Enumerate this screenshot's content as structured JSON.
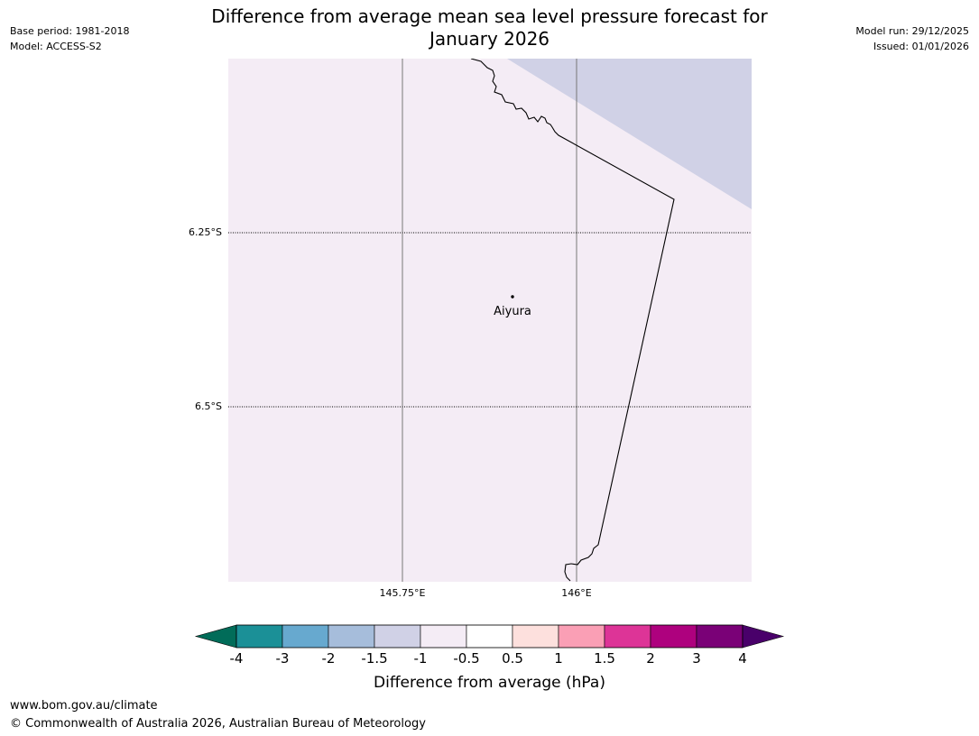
{
  "header": {
    "title_line1": "Difference from average mean sea level pressure forecast for",
    "title_line2": "January 2026",
    "base_period": "Base period: 1981-2018",
    "model": "Model: ACCESS-S2",
    "model_run": "Model run: 29/12/2025",
    "issued": "Issued: 01/01/2026"
  },
  "map": {
    "lat_labels": [
      "6.25°S",
      "6.5°S"
    ],
    "lon_labels": [
      "145.75°E",
      "146°E"
    ],
    "place_name": "Aiyura",
    "field_colors": {
      "background": "#f4ecf5",
      "upper_right": "#d0d1e6"
    },
    "coastline_color": "#000000"
  },
  "colorbar": {
    "label": "Difference from average (hPa)",
    "tick_labels": [
      "-4",
      "-3",
      "-2",
      "-1.5",
      "-1",
      "-0.5",
      "0.5",
      "1",
      "1.5",
      "2",
      "3",
      "4"
    ],
    "colors": [
      "#1b9097",
      "#67a9cf",
      "#a6bddb",
      "#d0d1e6",
      "#f4ecf5",
      "#ffffff",
      "#fde0dd",
      "#fa9fb5",
      "#dd3497",
      "#ae017e",
      "#7a0177"
    ],
    "extend_low_color": "#016c59",
    "extend_high_color": "#49006a"
  },
  "footer": {
    "url": "www.bom.gov.au/climate",
    "copyright": "© Commonwealth of Australia 2026, Australian Bureau of Meteorology"
  }
}
